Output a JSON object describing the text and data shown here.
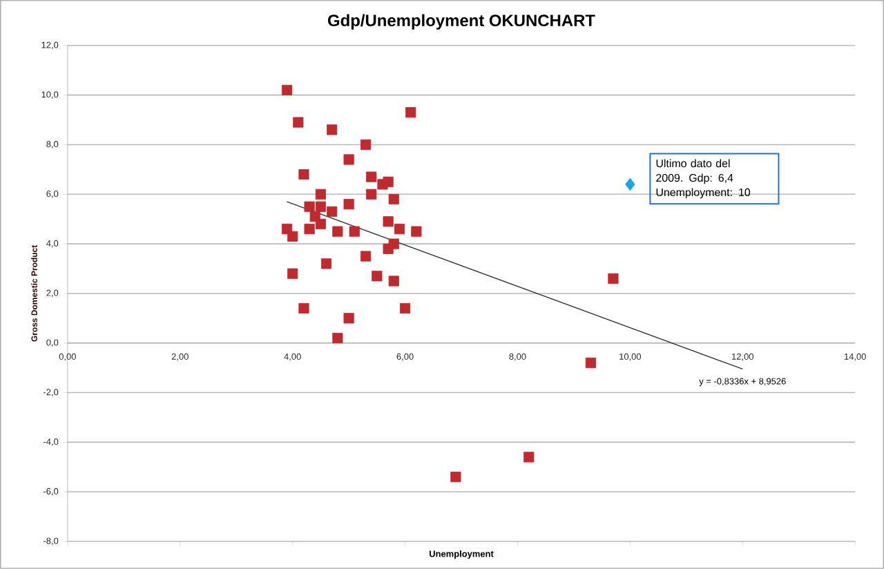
{
  "chart_data": {
    "type": "scatter",
    "title": "Gdp/Unemployment OKUNCHART",
    "xlabel": "Unemployment",
    "ylabel": "Gross Domestic Product",
    "xlim": [
      0,
      14
    ],
    "ylim": [
      -8,
      12
    ],
    "xticks": [
      {
        "value": 0,
        "label": "0,00"
      },
      {
        "value": 2,
        "label": "2,00"
      },
      {
        "value": 4,
        "label": "4,00"
      },
      {
        "value": 6,
        "label": "6,00"
      },
      {
        "value": 8,
        "label": "8,00"
      },
      {
        "value": 10,
        "label": "10,00"
      },
      {
        "value": 12,
        "label": "12,00"
      },
      {
        "value": 14,
        "label": "14,00"
      }
    ],
    "yticks": [
      {
        "value": -8,
        "label": "-8,0"
      },
      {
        "value": -6,
        "label": "-6,0"
      },
      {
        "value": -4,
        "label": "-4,0"
      },
      {
        "value": -2,
        "label": "-2,0"
      },
      {
        "value": 0,
        "label": "0,0"
      },
      {
        "value": 2,
        "label": "2,0"
      },
      {
        "value": 4,
        "label": "4,0"
      },
      {
        "value": 6,
        "label": "6,0"
      },
      {
        "value": 8,
        "label": "8,0"
      },
      {
        "value": 10,
        "label": "10,0"
      },
      {
        "value": 12,
        "label": "12,0"
      }
    ],
    "grid": "y",
    "marker": "square",
    "series": [
      {
        "color": "#be2a2e",
        "x": [
          3.9,
          4.1,
          4.7,
          6.1,
          5.3,
          5.0,
          4.2,
          5.4,
          5.7,
          5.6,
          4.5,
          5.4,
          5.8,
          5.0,
          4.3,
          4.5,
          4.7,
          4.4,
          4.5,
          5.7,
          3.9,
          4.0,
          4.3,
          4.8,
          5.1,
          5.9,
          6.2,
          5.8,
          5.7,
          5.3,
          4.6,
          4.0,
          5.5,
          5.8,
          4.2,
          6.0,
          5.0,
          4.8,
          9.7,
          9.3,
          8.2,
          6.9
        ],
        "values": [
          10.2,
          8.9,
          8.6,
          9.3,
          8.0,
          7.4,
          6.8,
          6.7,
          6.5,
          6.4,
          6.0,
          6.0,
          5.8,
          5.6,
          5.5,
          5.5,
          5.3,
          5.1,
          4.8,
          4.9,
          4.6,
          4.3,
          4.6,
          4.5,
          4.5,
          4.6,
          4.5,
          4.0,
          3.8,
          3.5,
          3.2,
          2.8,
          2.7,
          2.5,
          1.4,
          1.4,
          1.0,
          0.2,
          2.6,
          -0.8,
          -4.6,
          -5.4
        ]
      },
      {
        "color": "#1ea5e6",
        "marker": "diamond",
        "x": [
          10
        ],
        "values": [
          6.4
        ]
      },
      {
        "type": "line",
        "color": "#333333",
        "marker": "none",
        "x": [
          3.9,
          12
        ],
        "values": [
          5.7,
          -1.05
        ]
      }
    ],
    "annotations": [
      {
        "text": "Ultimo dato del 2009. Gdp: 6,4 Unemployment: 10",
        "x": 10,
        "y": 6.4
      },
      {
        "text": "y = -0,8336x + 8,9526",
        "x": 12,
        "y": -1.05
      }
    ]
  }
}
